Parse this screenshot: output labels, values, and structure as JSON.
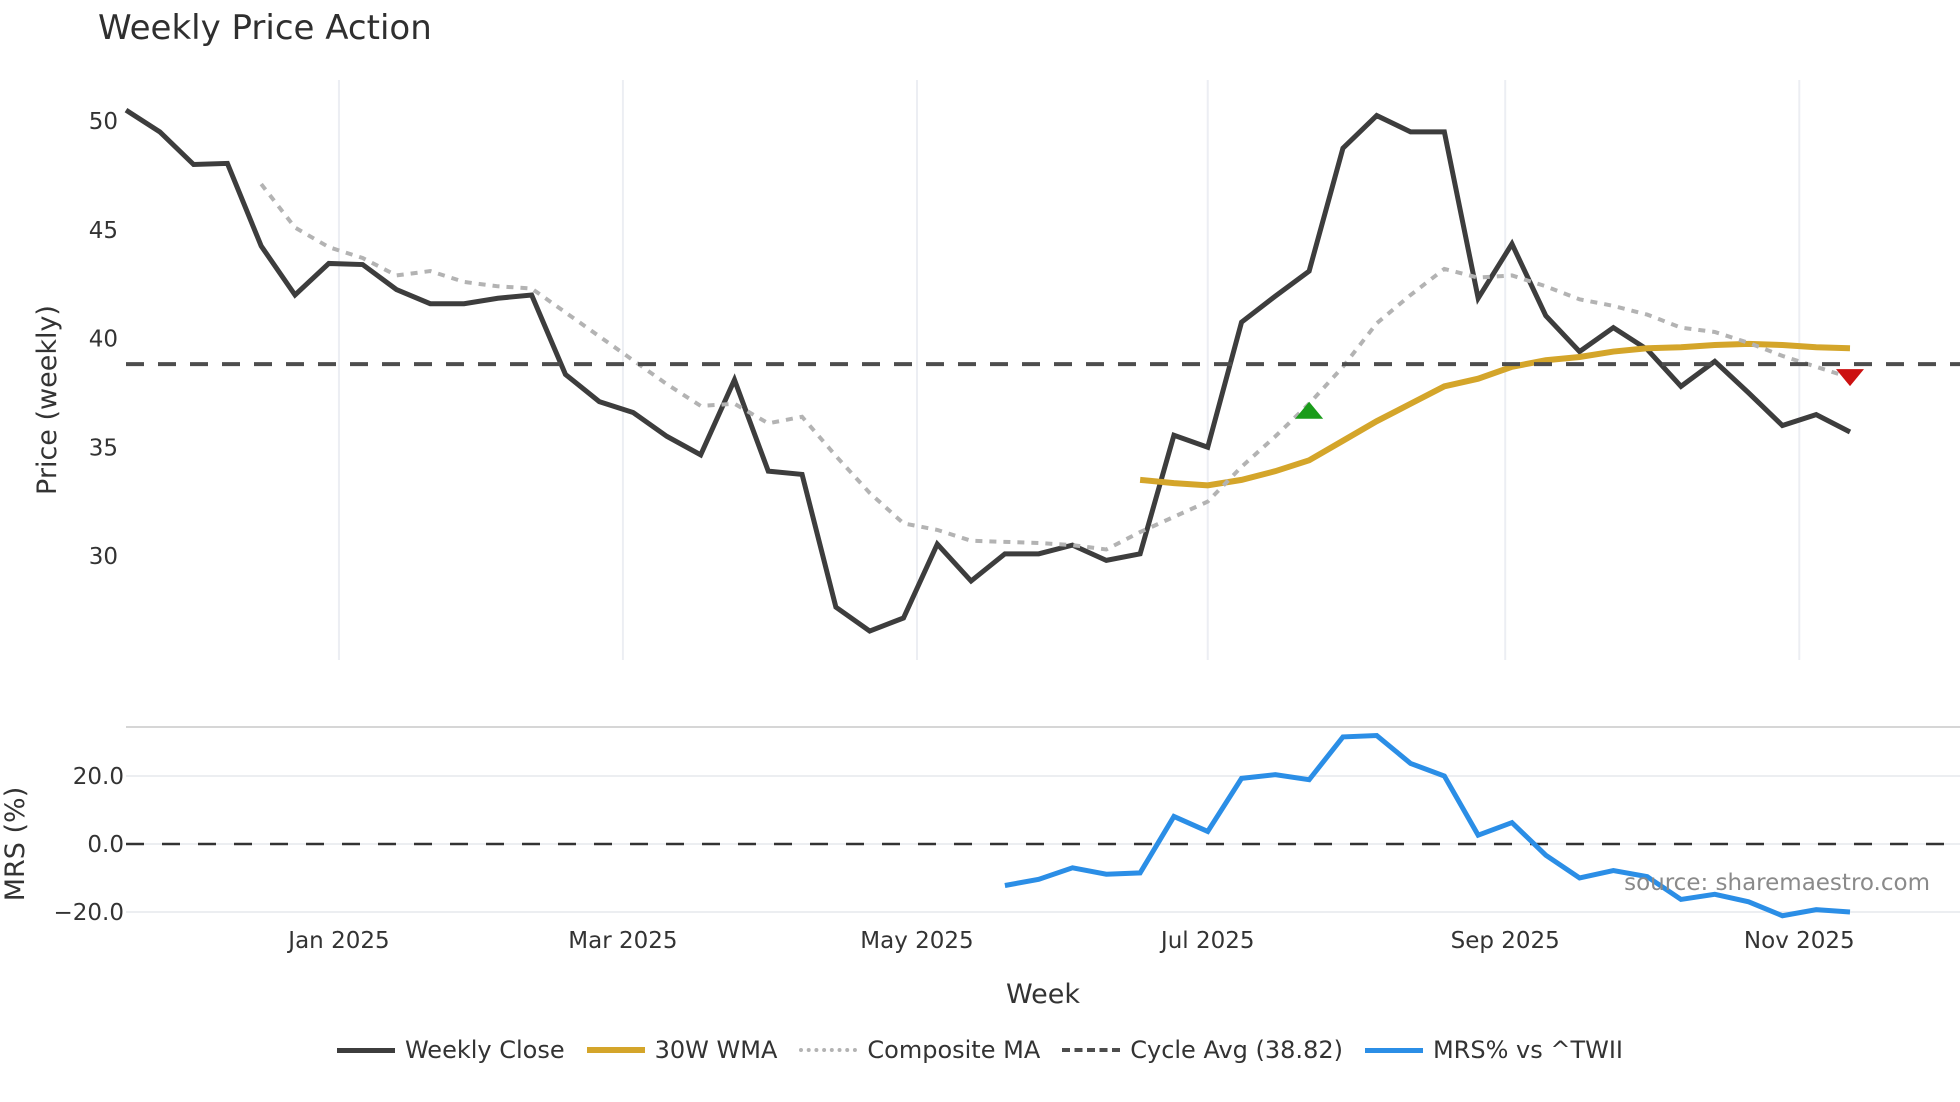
{
  "title": "Weekly Price Action",
  "source_text": "source: sharemaestro.com",
  "chart_data": [
    {
      "type": "line",
      "panel": "price",
      "title": "Weekly Price Action",
      "xlabel": "Week",
      "ylabel": "Price (weekly)",
      "ylim": [
        25.2,
        52.0
      ],
      "yticks": [
        30,
        35,
        40,
        45,
        50
      ],
      "xtick_labels": [
        "Jan 2025",
        "Mar 2025",
        "May 2025",
        "Jul 2025",
        "Sep 2025",
        "Nov 2025"
      ],
      "xtick_positions": [
        7.3,
        15.7,
        24.4,
        33.0,
        41.8,
        50.5
      ],
      "grid": "vertical",
      "x": [
        1,
        2,
        3,
        4,
        5,
        6,
        7,
        8,
        9,
        10,
        11,
        12,
        13,
        14,
        15,
        16,
        17,
        18,
        19,
        20,
        21,
        22,
        23,
        24,
        25,
        26,
        27,
        28,
        29,
        30,
        31,
        32,
        33,
        34,
        35,
        36,
        37,
        38,
        39,
        40,
        41,
        42,
        43,
        44,
        45,
        46,
        47,
        48,
        49,
        50,
        51,
        52
      ],
      "series": [
        {
          "name": "Weekly Close",
          "color": "#3d3d3d",
          "style": "solid",
          "width": 5,
          "values": [
            50.5,
            49.5,
            48.0,
            48.05,
            44.25,
            42.0,
            43.45,
            43.4,
            42.25,
            41.6,
            41.6,
            41.85,
            42.0,
            38.35,
            37.1,
            36.6,
            35.5,
            34.65,
            38.1,
            33.9,
            33.75,
            27.65,
            26.55,
            27.15,
            30.55,
            28.85,
            30.1,
            30.1,
            30.5,
            29.8,
            30.1,
            35.55,
            35.0,
            40.75,
            41.95,
            43.1,
            48.75,
            50.25,
            49.5,
            49.5,
            41.85,
            44.35,
            41.05,
            39.4,
            40.5,
            39.5,
            37.8,
            38.95,
            37.5,
            36.0,
            36.5,
            35.7
          ]
        },
        {
          "name": "30W WMA",
          "color": "#d4a52a",
          "style": "solid",
          "width": 6,
          "values": [
            null,
            null,
            null,
            null,
            null,
            null,
            null,
            null,
            null,
            null,
            null,
            null,
            null,
            null,
            null,
            null,
            null,
            null,
            null,
            null,
            null,
            null,
            null,
            null,
            null,
            null,
            null,
            null,
            null,
            null,
            33.5,
            33.35,
            33.25,
            33.5,
            33.9,
            34.4,
            35.3,
            36.2,
            37.0,
            37.8,
            38.15,
            38.7,
            39.0,
            39.15,
            39.4,
            39.55,
            39.6,
            39.7,
            39.75,
            39.7,
            39.6,
            39.55
          ]
        },
        {
          "name": "Composite MA",
          "color": "#b3b3b3",
          "style": "dotted",
          "width": 4,
          "values": [
            null,
            null,
            null,
            null,
            47.1,
            45.1,
            44.2,
            43.7,
            42.9,
            43.1,
            42.6,
            42.4,
            42.3,
            41.2,
            40.1,
            39.0,
            37.9,
            36.9,
            37.0,
            36.1,
            36.4,
            34.6,
            32.9,
            31.5,
            31.2,
            30.7,
            30.65,
            30.6,
            30.5,
            30.3,
            31.1,
            31.8,
            32.5,
            34.1,
            35.5,
            37.0,
            38.7,
            40.7,
            42.0,
            43.2,
            42.8,
            42.9,
            42.4,
            41.8,
            41.5,
            41.1,
            40.5,
            40.3,
            39.8,
            39.2,
            38.7,
            38.2
          ]
        },
        {
          "name": "Cycle Avg (38.82)",
          "color": "#4d4d4d",
          "style": "dashed",
          "width": 4,
          "constant": 38.82
        }
      ],
      "markers": [
        {
          "type": "buy-triangle-up",
          "x": 36,
          "y": 36.7,
          "color": "#1a9c1a"
        },
        {
          "type": "sell-triangle-down",
          "x": 52,
          "y": 38.2,
          "color": "#cc1111"
        }
      ]
    },
    {
      "type": "line",
      "panel": "mrs",
      "ylabel": "MRS (%)",
      "ylim": [
        -22.5,
        34.5
      ],
      "yticks": [
        20.0,
        0.0,
        -20.0
      ],
      "ytick_labels": [
        "20.0",
        "0.0",
        "−20.0"
      ],
      "zero_line": {
        "value": 0,
        "style": "dashed",
        "color": "#333333"
      },
      "series": [
        {
          "name": "MRS% vs ^TWII",
          "color": "#2b8ee6",
          "style": "solid",
          "width": 5,
          "values": [
            null,
            null,
            null,
            null,
            null,
            null,
            null,
            null,
            null,
            null,
            null,
            null,
            null,
            null,
            null,
            null,
            null,
            null,
            null,
            null,
            null,
            null,
            null,
            null,
            null,
            null,
            -12.2,
            -10.4,
            -7.0,
            -8.9,
            -8.5,
            8.1,
            3.7,
            19.3,
            20.4,
            18.9,
            31.5,
            31.9,
            23.7,
            20.0,
            2.6,
            6.3,
            -3.3,
            -10.0,
            -7.8,
            -9.6,
            -16.3,
            -14.8,
            -17.0,
            -21.1,
            -19.3,
            -20.0
          ]
        }
      ]
    }
  ],
  "legend": [
    {
      "label": "Weekly Close",
      "color": "#3d3d3d",
      "style": "solid"
    },
    {
      "label": "30W WMA",
      "color": "#d4a52a",
      "style": "solid"
    },
    {
      "label": "Composite MA",
      "color": "#b3b3b3",
      "style": "dotted"
    },
    {
      "label": "Cycle Avg (38.82)",
      "color": "#4d4d4d",
      "style": "dashed"
    },
    {
      "label": "MRS% vs ^TWII",
      "color": "#2b8ee6",
      "style": "solid"
    }
  ]
}
